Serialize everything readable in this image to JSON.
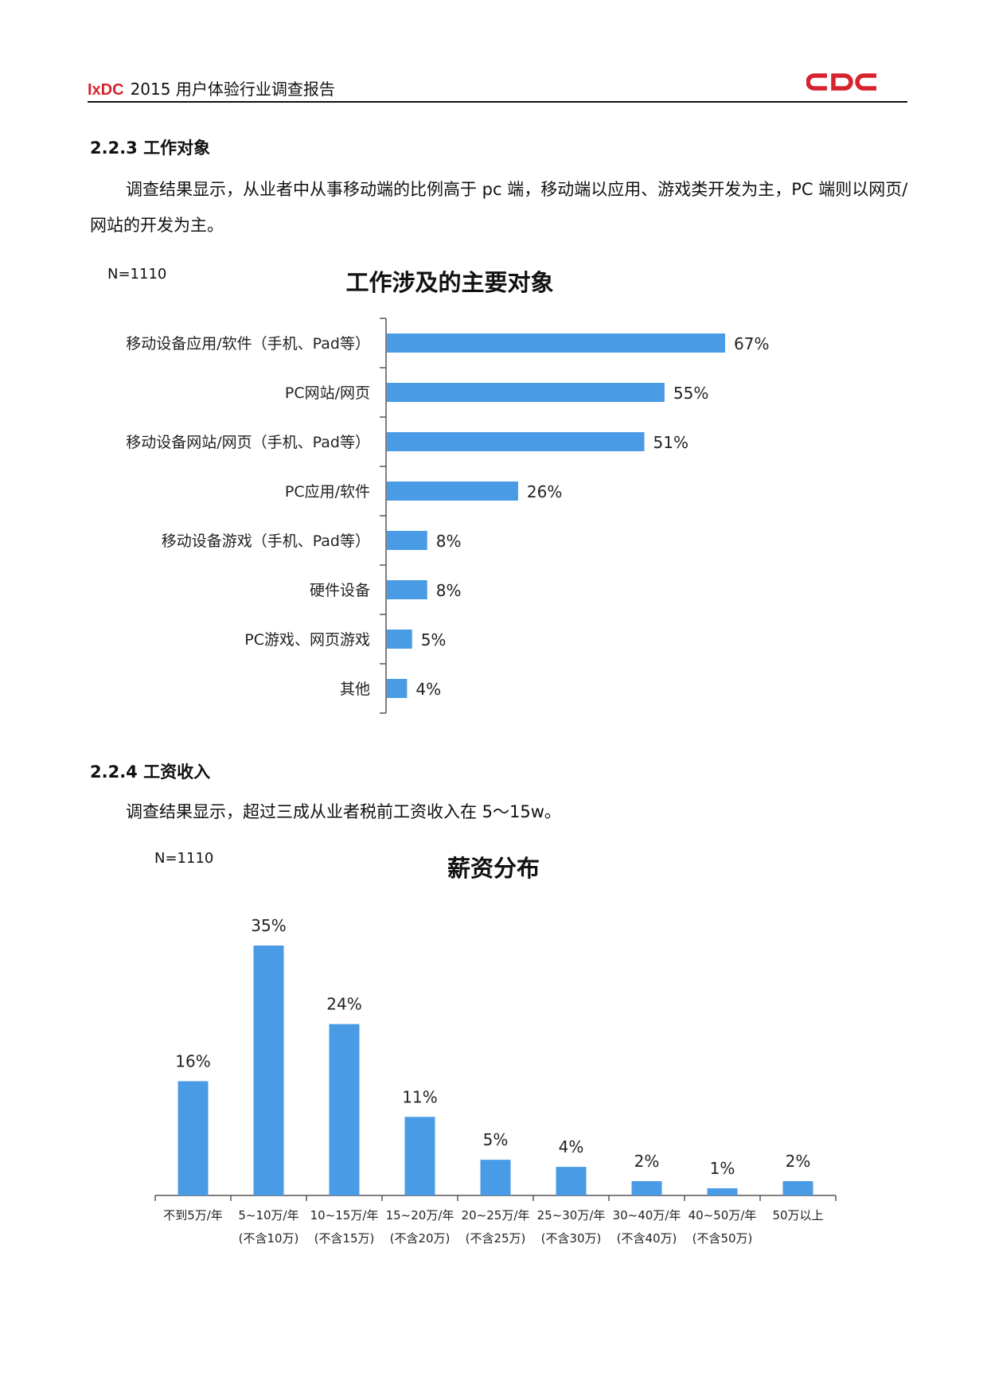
{
  "header": {
    "brand_logo_text": "IxDC",
    "title": "2015 用户体验行业调查报告",
    "right_logo_text": "CDC"
  },
  "section1": {
    "title": "2.2.3 工作对象",
    "paragraph": "调查结果显示，从业者中从事移动端的比例高于 pc 端，移动端以应用、游戏类开发为主，PC 端则以网页/网站的开发为主。"
  },
  "section2": {
    "title": "2.2.4 工资收入",
    "paragraph": "调查结果显示，超过三成从业者税前工资收入在 5～15w。"
  },
  "colors": {
    "bar": "#4a9be6",
    "axis": "#555555",
    "brand_red": "#d7232e"
  },
  "chart_data": [
    {
      "type": "bar",
      "orientation": "horizontal",
      "title": "工作涉及的主要对象",
      "note": "N=1110",
      "categories": [
        "移动设备应用/软件（手机、Pad等）",
        "PC网站/网页",
        "移动设备网站/网页（手机、Pad等）",
        "PC应用/软件",
        "移动设备游戏（手机、Pad等）",
        "硬件设备",
        "PC游戏、网页游戏",
        "其他"
      ],
      "values": [
        67,
        55,
        51,
        26,
        8,
        8,
        5,
        4
      ],
      "data_labels": [
        "67%",
        "55%",
        "51%",
        "26%",
        "8%",
        "8%",
        "5%",
        "4%"
      ],
      "unit": "%"
    },
    {
      "type": "bar",
      "orientation": "vertical",
      "title": "薪资分布",
      "note": "N=1110",
      "categories": [
        [
          "不到5万/年",
          ""
        ],
        [
          "5~10万/年",
          "(不含10万)"
        ],
        [
          "10~15万/年",
          "(不含15万)"
        ],
        [
          "15~20万/年",
          "(不含20万)"
        ],
        [
          "20~25万/年",
          "(不含25万)"
        ],
        [
          "25~30万/年",
          "(不含30万)"
        ],
        [
          "30~40万/年",
          "(不含40万)"
        ],
        [
          "40~50万/年",
          "(不含50万)"
        ],
        [
          "50万以上",
          ""
        ]
      ],
      "values": [
        16,
        35,
        24,
        11,
        5,
        4,
        2,
        1,
        2
      ],
      "data_labels": [
        "16%",
        "35%",
        "24%",
        "11%",
        "5%",
        "4%",
        "2%",
        "1%",
        "2%"
      ],
      "unit": "%"
    }
  ]
}
